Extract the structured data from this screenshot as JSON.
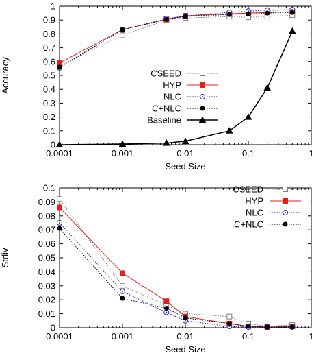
{
  "chart_data": [
    {
      "type": "line",
      "xscale": "log",
      "xlim": [
        0.0001,
        1
      ],
      "ylim": [
        0,
        1
      ],
      "xlabel": "Seed Size",
      "ylabel": "Accuracy",
      "xticks": [
        0.0001,
        0.001,
        0.01,
        0.1,
        1
      ],
      "xtick_labels": [
        "0.0001",
        "0.001",
        "0.01",
        "0.1",
        "1"
      ],
      "yticks": [
        0,
        0.1,
        0.2,
        0.3,
        0.4,
        0.5,
        0.6,
        0.7,
        0.8,
        0.9,
        1
      ],
      "ytick_labels": [
        "0",
        "0.1",
        "0.2",
        "0.3",
        "0.4",
        "0.5",
        "0.6",
        "0.7",
        "0.8",
        "0.9",
        "1"
      ],
      "grid": false,
      "legend_position": "center-right",
      "x": [
        0.0001,
        0.001,
        0.005,
        0.01,
        0.05,
        0.1,
        0.2,
        0.5
      ],
      "series": [
        {
          "name": "CSEED",
          "values": [
            0.57,
            0.79,
            0.9,
            0.915,
            0.925,
            0.92,
            0.925,
            0.935
          ],
          "color": "#7f7f7f",
          "marker": "open-square",
          "dash": "dotted"
        },
        {
          "name": "HYP",
          "values": [
            0.59,
            0.83,
            0.905,
            0.93,
            0.945,
            0.95,
            0.955,
            0.96
          ],
          "color": "#e02020",
          "marker": "filled-square",
          "dash": "solid"
        },
        {
          "name": "NLC",
          "values": [
            0.555,
            0.83,
            0.91,
            0.93,
            0.955,
            0.965,
            0.97,
            0.975
          ],
          "color": "#2020d0",
          "marker": "open-circle",
          "dash": "dotted"
        },
        {
          "name": "C+NLC",
          "values": [
            0.56,
            0.83,
            0.905,
            0.925,
            0.94,
            0.945,
            0.95,
            0.955
          ],
          "color": "#000000",
          "marker": "filled-circle",
          "dash": "dotted"
        },
        {
          "name": "Baseline",
          "values": [
            0.0,
            0.005,
            0.012,
            0.025,
            0.1,
            0.2,
            0.41,
            0.82
          ],
          "color": "#000000",
          "marker": "filled-triangle",
          "dash": "solid"
        }
      ]
    },
    {
      "type": "line",
      "xscale": "log",
      "xlim": [
        0.0001,
        1
      ],
      "ylim": [
        0,
        0.1
      ],
      "xlabel": "Seed Size",
      "ylabel": "Stdiv",
      "xticks": [
        0.0001,
        0.001,
        0.01,
        0.1,
        1
      ],
      "xtick_labels": [
        "0.0001",
        "0.001",
        "0.01",
        "0.1",
        "1"
      ],
      "yticks": [
        0,
        0.01,
        0.02,
        0.03,
        0.04,
        0.05,
        0.06,
        0.07,
        0.08,
        0.09,
        0.1
      ],
      "ytick_labels": [
        "0",
        "0.01",
        "0.02",
        "0.03",
        "0.04",
        "0.05",
        "0.06",
        "0.07",
        "0.08",
        "0.09",
        "0.1"
      ],
      "grid": false,
      "legend_position": "top-right",
      "x": [
        0.0001,
        0.001,
        0.005,
        0.01,
        0.05,
        0.1,
        0.2,
        0.5
      ],
      "series": [
        {
          "name": "CSEED",
          "values": [
            0.092,
            0.03,
            0.016,
            0.01,
            0.008,
            0.003,
            0.001,
            0.002
          ],
          "color": "#7f7f7f",
          "marker": "open-square",
          "dash": "dotted"
        },
        {
          "name": "HYP",
          "values": [
            0.086,
            0.039,
            0.019,
            0.008,
            0.003,
            0.001,
            0.0005,
            0.001
          ],
          "color": "#e02020",
          "marker": "filled-square",
          "dash": "solid"
        },
        {
          "name": "NLC",
          "values": [
            0.075,
            0.026,
            0.011,
            0.005,
            0.001,
            0.0005,
            0.0005,
            0.0005
          ],
          "color": "#2020d0",
          "marker": "open-circle",
          "dash": "dotted"
        },
        {
          "name": "C+NLC",
          "values": [
            0.071,
            0.021,
            0.014,
            0.007,
            0.003,
            0.001,
            0.0005,
            0.0005
          ],
          "color": "#000000",
          "marker": "filled-circle",
          "dash": "dotted"
        }
      ]
    }
  ]
}
